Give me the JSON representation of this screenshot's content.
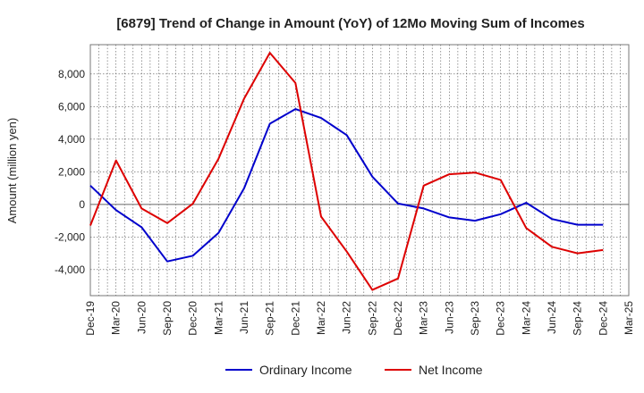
{
  "chart_data": {
    "type": "line",
    "title": "[6879]  Trend of Change in Amount (YoY) of 12Mo Moving Sum of Incomes",
    "xlabel": "",
    "ylabel": "Amount (million yen)",
    "ylim": [
      -5600,
      9800
    ],
    "yticks": [
      -4000,
      -2000,
      0,
      2000,
      4000,
      6000,
      8000
    ],
    "ytick_labels": [
      "-4,000",
      "-2,000",
      "0",
      "2,000",
      "4,000",
      "6,000",
      "8,000"
    ],
    "categories": [
      "Dec-19",
      "Mar-20",
      "Jun-20",
      "Sep-20",
      "Dec-20",
      "Mar-21",
      "Jun-21",
      "Sep-21",
      "Dec-21",
      "Mar-22",
      "Jun-22",
      "Sep-22",
      "Dec-22",
      "Mar-23",
      "Jun-23",
      "Sep-23",
      "Dec-23",
      "Mar-24",
      "Jun-24",
      "Sep-24",
      "Dec-24",
      "Mar-25"
    ],
    "grid": true,
    "legend_position": "bottom",
    "series": [
      {
        "name": "Ordinary Income",
        "color": "#0000cc",
        "values": [
          1150,
          -350,
          -1400,
          -3500,
          -3150,
          -1750,
          1000,
          4950,
          5850,
          5300,
          4250,
          1700,
          50,
          -250,
          -800,
          -1000,
          -600,
          100,
          -900,
          -1250,
          -1250,
          null
        ]
      },
      {
        "name": "Net Income",
        "color": "#dd0000",
        "values": [
          -1300,
          2700,
          -250,
          -1150,
          50,
          2800,
          6500,
          9300,
          7450,
          -750,
          -2900,
          -5250,
          -4550,
          1150,
          1850,
          1950,
          1500,
          -1450,
          -2600,
          -3000,
          -2800,
          null
        ]
      }
    ]
  }
}
